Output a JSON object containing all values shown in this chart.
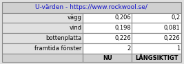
{
  "title": "U-värden - https://www.rockwool.se/",
  "rows": [
    [
      "vägg",
      "0,206",
      "0,2"
    ],
    [
      "vind",
      "0,198",
      "0,081"
    ],
    [
      "bottenplatta",
      "0,226",
      "0,226"
    ],
    [
      "framtida fönster",
      "2",
      "1"
    ]
  ],
  "col_headers": [
    "",
    "NU",
    "LÅNGSIKTIGT"
  ],
  "header_bg": "#d0d0d0",
  "cell_bg_label": "#e0e0e0",
  "cell_bg_value": "#ffffff",
  "border_color": "#888888",
  "title_color": "#1111cc",
  "text_color": "#000000",
  "title_fontsize": 6.5,
  "cell_fontsize": 6.0,
  "header_fontsize": 6.0
}
